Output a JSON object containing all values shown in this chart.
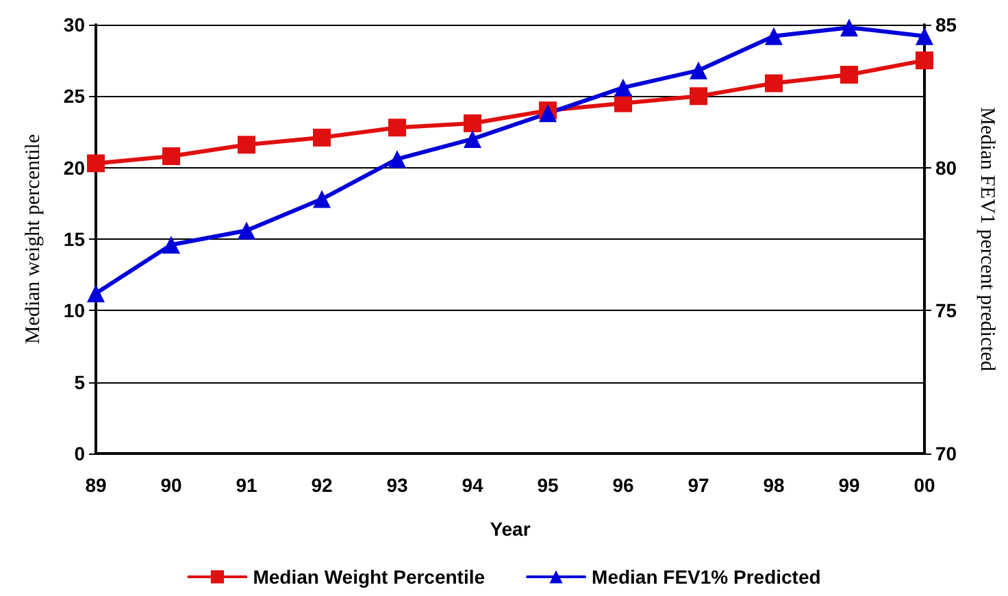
{
  "chart_data": {
    "type": "line",
    "xlabel": "Year",
    "ylabel": "Median weight percentile",
    "y2label": "Median FEV1 percent predicted",
    "categories": [
      "89",
      "90",
      "91",
      "92",
      "93",
      "94",
      "95",
      "96",
      "97",
      "98",
      "99",
      "00"
    ],
    "series": [
      {
        "name": "Median Weight Percentile",
        "color": "#e01010",
        "marker": "square",
        "values": [
          20.3,
          20.8,
          21.6,
          22.1,
          22.8,
          23.1,
          24.0,
          24.5,
          25.0,
          25.9,
          26.5,
          27.5
        ]
      },
      {
        "name": "Median FEV1% Predicted",
        "color": "#0000d8",
        "marker": "triangle",
        "axis": "y2",
        "values": [
          75.6,
          77.3,
          77.8,
          78.9,
          80.3,
          81.0,
          81.9,
          82.8,
          83.4,
          84.6,
          84.9,
          84.6
        ]
      }
    ],
    "ylim": [
      0,
      30
    ],
    "yticks": [
      0,
      5,
      10,
      15,
      20,
      25,
      30
    ],
    "y2lim": [
      70,
      85
    ],
    "y2ticks": [
      70,
      75,
      80,
      85
    ],
    "grid": "y",
    "legend": "bottom"
  }
}
